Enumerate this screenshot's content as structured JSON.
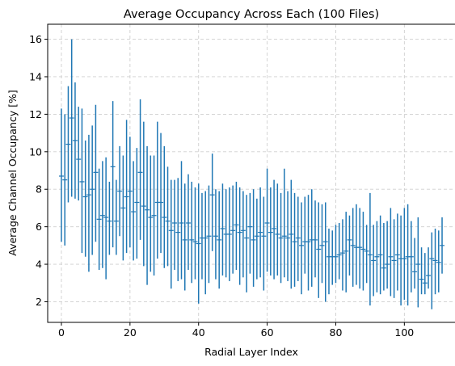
{
  "chart_data": {
    "type": "errorbar",
    "title": "Average Occupancy Across Each  (100 Files)",
    "xlabel": "Radial Layer Index",
    "ylabel": "Average Channel Occupancy [%]",
    "xlim": [
      -4,
      115
    ],
    "ylim": [
      0.9,
      16.8
    ],
    "xticks": [
      0,
      20,
      40,
      60,
      80,
      100
    ],
    "yticks": [
      2,
      4,
      6,
      8,
      10,
      12,
      14,
      16
    ],
    "grid": true,
    "color": "#1f77b4",
    "series": [
      {
        "name": "occupancy",
        "x": [
          0,
          1,
          2,
          3,
          4,
          5,
          6,
          7,
          8,
          9,
          10,
          11,
          12,
          13,
          14,
          15,
          16,
          17,
          18,
          19,
          20,
          21,
          22,
          23,
          24,
          25,
          26,
          27,
          28,
          29,
          30,
          31,
          32,
          33,
          34,
          35,
          36,
          37,
          38,
          39,
          40,
          41,
          42,
          43,
          44,
          45,
          46,
          47,
          48,
          49,
          50,
          51,
          52,
          53,
          54,
          55,
          56,
          57,
          58,
          59,
          60,
          61,
          62,
          63,
          64,
          65,
          66,
          67,
          68,
          69,
          70,
          71,
          72,
          73,
          74,
          75,
          76,
          77,
          78,
          79,
          80,
          81,
          82,
          83,
          84,
          85,
          86,
          87,
          88,
          89,
          90,
          91,
          92,
          93,
          94,
          95,
          96,
          97,
          98,
          99,
          100,
          101,
          102,
          103,
          104,
          105,
          106,
          107,
          108,
          109,
          110,
          111
        ],
        "mean": [
          8.7,
          8.5,
          10.4,
          11.8,
          10.6,
          9.6,
          8.4,
          7.6,
          7.7,
          8.0,
          8.9,
          6.4,
          6.6,
          6.5,
          6.3,
          9.2,
          6.3,
          7.9,
          7.0,
          7.6,
          7.9,
          6.8,
          7.3,
          8.9,
          7.1,
          6.9,
          6.5,
          6.6,
          7.3,
          7.3,
          6.5,
          6.3,
          5.8,
          6.2,
          5.7,
          6.2,
          5.3,
          6.2,
          5.3,
          5.2,
          5.1,
          5.4,
          5.4,
          5.5,
          7.7,
          5.5,
          5.3,
          5.9,
          5.6,
          5.6,
          5.8,
          6.1,
          5.7,
          5.8,
          5.4,
          6.0,
          5.3,
          5.5,
          5.7,
          5.5,
          6.2,
          5.7,
          5.9,
          5.6,
          5.4,
          5.5,
          5.4,
          5.6,
          5.2,
          5.4,
          5.0,
          5.2,
          5.2,
          5.3,
          5.3,
          4.8,
          5.0,
          5.2,
          4.4,
          4.4,
          4.4,
          4.5,
          4.6,
          4.7,
          5.3,
          5.0,
          4.9,
          4.9,
          4.8,
          4.7,
          4.5,
          4.2,
          4.4,
          4.5,
          3.8,
          4.0,
          4.4,
          4.2,
          4.5,
          4.3,
          4.3,
          4.4,
          4.4,
          3.6,
          4.0,
          3.2,
          3.0,
          3.4,
          4.3,
          4.2,
          4.1,
          5.0
        ],
        "low": [
          5.2,
          5.0,
          7.3,
          7.6,
          7.5,
          7.4,
          4.6,
          4.4,
          3.6,
          4.5,
          5.2,
          3.7,
          3.8,
          3.2,
          4.5,
          4.9,
          4.5,
          5.5,
          4.2,
          4.6,
          4.9,
          4.2,
          4.3,
          5.3,
          3.9,
          2.9,
          3.6,
          3.4,
          4.3,
          4.6,
          3.8,
          3.9,
          2.7,
          3.7,
          3.1,
          3.2,
          2.6,
          3.7,
          3.0,
          3.2,
          1.9,
          3.2,
          2.4,
          3.0,
          4.7,
          3.2,
          2.7,
          3.4,
          3.3,
          3.1,
          3.5,
          3.7,
          2.9,
          3.3,
          2.5,
          3.5,
          2.8,
          3.2,
          3.3,
          2.6,
          3.6,
          3.4,
          3.2,
          3.4,
          3.0,
          3.3,
          3.1,
          2.7,
          2.8,
          3.1,
          2.4,
          3.5,
          2.6,
          2.8,
          3.3,
          2.2,
          3.0,
          2.0,
          2.4,
          2.9,
          3.0,
          3.2,
          2.6,
          2.5,
          3.4,
          2.8,
          2.9,
          2.7,
          2.6,
          3.0,
          1.8,
          2.3,
          2.5,
          2.4,
          2.6,
          2.7,
          2.3,
          2.2,
          2.6,
          1.8,
          2.1,
          1.8,
          2.5,
          2.7,
          1.7,
          2.4,
          2.4,
          2.7,
          1.6,
          2.4,
          2.5,
          3.5
        ],
        "high": [
          12.3,
          12.0,
          13.5,
          16.0,
          13.7,
          12.4,
          12.3,
          10.6,
          10.9,
          11.4,
          12.5,
          9.1,
          9.5,
          9.7,
          8.4,
          12.7,
          8.5,
          10.3,
          9.8,
          11.7,
          10.8,
          9.5,
          10.2,
          12.8,
          11.6,
          10.3,
          9.8,
          9.8,
          11.6,
          11.0,
          10.3,
          9.2,
          8.5,
          8.5,
          8.6,
          9.5,
          8.3,
          8.8,
          8.4,
          8.1,
          8.3,
          7.8,
          7.9,
          8.2,
          9.9,
          8.0,
          7.9,
          8.3,
          8.0,
          8.1,
          8.2,
          8.4,
          8.1,
          7.9,
          7.7,
          7.8,
          8.0,
          7.5,
          8.1,
          7.6,
          9.1,
          8.1,
          8.5,
          8.3,
          7.8,
          9.1,
          7.9,
          8.5,
          7.8,
          7.6,
          7.3,
          7.6,
          7.7,
          8.0,
          7.4,
          7.3,
          7.2,
          7.3,
          5.9,
          5.8,
          6.1,
          6.2,
          6.4,
          6.8,
          6.6,
          7.0,
          7.2,
          7.0,
          6.8,
          6.1,
          7.8,
          6.1,
          6.3,
          6.6,
          6.2,
          6.3,
          7.0,
          6.4,
          6.7,
          6.6,
          7.0,
          7.2,
          6.3,
          5.4,
          6.5,
          4.9,
          4.6,
          4.9,
          5.7,
          5.9,
          5.8,
          6.5
        ]
      }
    ]
  }
}
